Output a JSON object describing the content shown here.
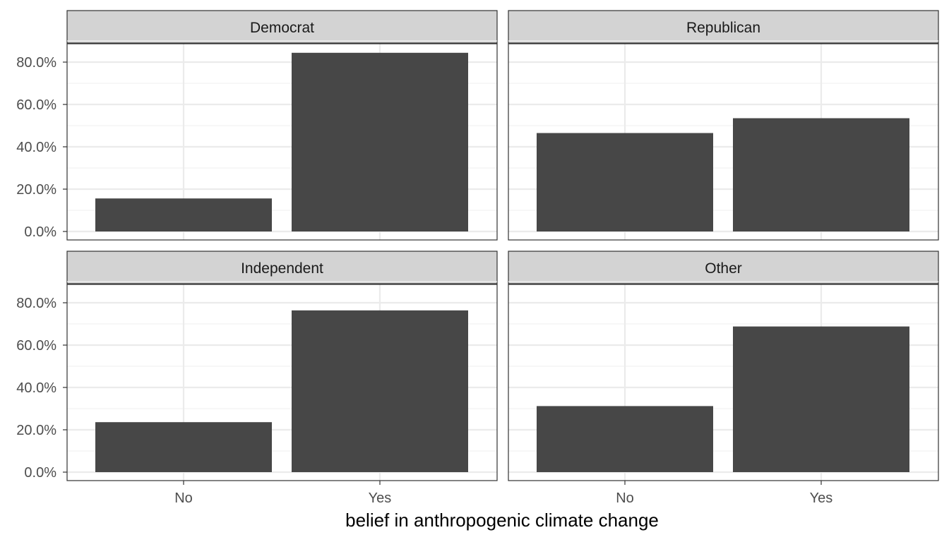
{
  "chart_data": {
    "type": "bar",
    "layout": "facet-wrap 2x2",
    "xlabel": "belief in anthropogenic climate change",
    "ylabel": "",
    "categories": [
      "No",
      "Yes"
    ],
    "ylim": [
      0,
      0.9
    ],
    "yticks": [
      0,
      0.2,
      0.4,
      0.6,
      0.8
    ],
    "ytick_labels": [
      "0.0%",
      "20.0%",
      "40.0%",
      "60.0%",
      "80.0%"
    ],
    "grid": true,
    "facets": [
      {
        "name": "Democrat",
        "values": [
          0.156,
          0.844
        ]
      },
      {
        "name": "Republican",
        "values": [
          0.465,
          0.535
        ]
      },
      {
        "name": "Independent",
        "values": [
          0.236,
          0.764
        ]
      },
      {
        "name": "Other",
        "values": [
          0.312,
          0.688
        ]
      }
    ]
  },
  "colors": {
    "bar": "#474747",
    "strip_fill": "#d3d3d3",
    "strip_border": "#333333",
    "panel_border": "#333333",
    "grid_major": "#ebebeb",
    "grid_minor": "#f2f2f2",
    "tick": "#333333"
  }
}
